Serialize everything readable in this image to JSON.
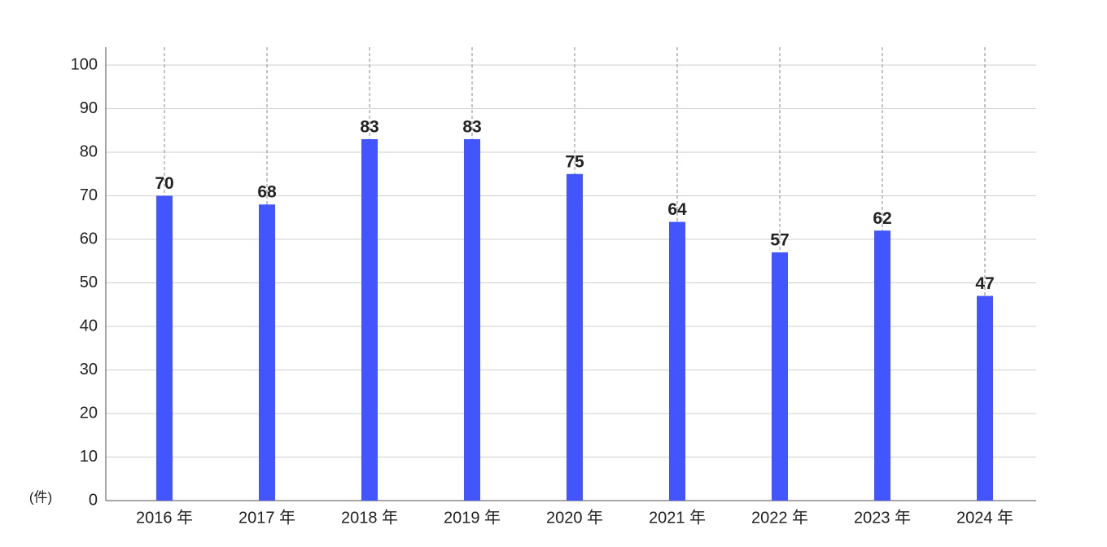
{
  "chart_data": {
    "type": "bar",
    "y_label": "(件)",
    "categories": [
      "2016 年",
      "2017 年",
      "2018 年",
      "2019 年",
      "2020 年",
      "2021 年",
      "2022 年",
      "2023 年",
      "2024 年"
    ],
    "values": [
      70,
      68,
      83,
      83,
      75,
      64,
      57,
      62,
      47
    ],
    "color": "#4355ff",
    "ylim": [
      0,
      100
    ],
    "yticks": [
      0,
      10,
      20,
      30,
      40,
      50,
      60,
      70,
      80,
      90,
      100
    ],
    "grid": true
  }
}
